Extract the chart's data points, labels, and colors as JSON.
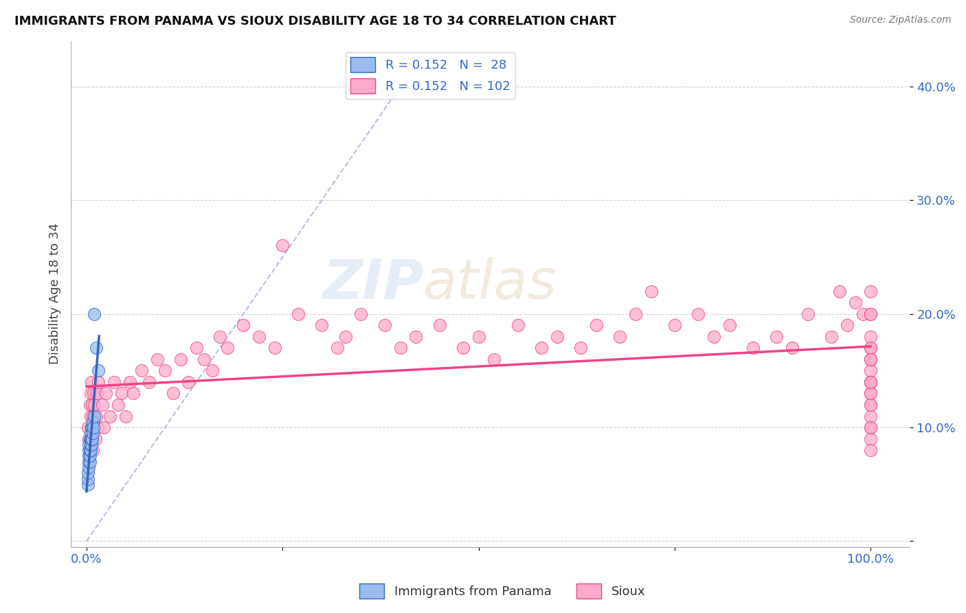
{
  "title": "IMMIGRANTS FROM PANAMA VS SIOUX DISABILITY AGE 18 TO 34 CORRELATION CHART",
  "source": "Source: ZipAtlas.com",
  "ylabel_label": "Disability Age 18 to 34",
  "x_ticks": [
    0.0,
    0.25,
    0.5,
    0.75,
    1.0
  ],
  "x_tick_labels": [
    "0.0%",
    "",
    "",
    "",
    "100.0%"
  ],
  "y_ticks": [
    0.0,
    0.1,
    0.2,
    0.3,
    0.4
  ],
  "y_tick_labels": [
    "",
    "10.0%",
    "20.0%",
    "30.0%",
    "40.0%"
  ],
  "xlim": [
    -0.02,
    1.05
  ],
  "ylim": [
    -0.005,
    0.44
  ],
  "legend_entry1": "R = 0.152   N =  28",
  "legend_entry2": "R = 0.152   N = 102",
  "legend_label1": "Immigrants from Panama",
  "legend_label2": "Sioux",
  "color_blue": "#99BBEE",
  "color_pink": "#FFAACC",
  "color_trendline_blue": "#3366BB",
  "color_trendline_pink": "#EE4488",
  "color_diagonal": "#AABBDD",
  "watermark_zip": "ZIP",
  "watermark_atlas": "atlas",
  "blue_x": [
    0.002,
    0.002,
    0.002,
    0.003,
    0.003,
    0.003,
    0.003,
    0.003,
    0.004,
    0.004,
    0.004,
    0.004,
    0.005,
    0.005,
    0.005,
    0.005,
    0.006,
    0.006,
    0.006,
    0.007,
    0.007,
    0.008,
    0.008,
    0.009,
    0.01,
    0.01,
    0.012,
    0.015
  ],
  "blue_y": [
    0.05,
    0.055,
    0.06,
    0.065,
    0.07,
    0.075,
    0.08,
    0.085,
    0.07,
    0.075,
    0.08,
    0.09,
    0.08,
    0.085,
    0.09,
    0.095,
    0.085,
    0.09,
    0.1,
    0.09,
    0.1,
    0.095,
    0.105,
    0.1,
    0.11,
    0.2,
    0.17,
    0.15
  ],
  "pink_x": [
    0.002,
    0.003,
    0.004,
    0.004,
    0.005,
    0.005,
    0.006,
    0.006,
    0.007,
    0.007,
    0.008,
    0.008,
    0.009,
    0.01,
    0.01,
    0.011,
    0.012,
    0.013,
    0.014,
    0.015,
    0.02,
    0.022,
    0.025,
    0.03,
    0.035,
    0.04,
    0.045,
    0.05,
    0.055,
    0.06,
    0.07,
    0.08,
    0.09,
    0.1,
    0.11,
    0.12,
    0.13,
    0.14,
    0.15,
    0.16,
    0.17,
    0.18,
    0.2,
    0.22,
    0.24,
    0.25,
    0.27,
    0.3,
    0.32,
    0.33,
    0.35,
    0.38,
    0.4,
    0.42,
    0.45,
    0.48,
    0.5,
    0.52,
    0.55,
    0.58,
    0.6,
    0.63,
    0.65,
    0.68,
    0.7,
    0.72,
    0.75,
    0.78,
    0.8,
    0.82,
    0.85,
    0.88,
    0.9,
    0.92,
    0.95,
    0.96,
    0.97,
    0.98,
    0.99,
    1.0,
    1.0,
    1.0,
    1.0,
    1.0,
    1.0,
    1.0,
    1.0,
    1.0,
    1.0,
    1.0,
    1.0,
    1.0,
    1.0,
    1.0,
    1.0,
    1.0,
    1.0,
    1.0,
    1.0,
    1.0,
    1.0,
    1.0
  ],
  "pink_y": [
    0.1,
    0.09,
    0.12,
    0.08,
    0.11,
    0.13,
    0.1,
    0.14,
    0.09,
    0.12,
    0.11,
    0.08,
    0.13,
    0.1,
    0.12,
    0.09,
    0.11,
    0.13,
    0.1,
    0.14,
    0.12,
    0.1,
    0.13,
    0.11,
    0.14,
    0.12,
    0.13,
    0.11,
    0.14,
    0.13,
    0.15,
    0.14,
    0.16,
    0.15,
    0.13,
    0.16,
    0.14,
    0.17,
    0.16,
    0.15,
    0.18,
    0.17,
    0.19,
    0.18,
    0.17,
    0.26,
    0.2,
    0.19,
    0.17,
    0.18,
    0.2,
    0.19,
    0.17,
    0.18,
    0.19,
    0.17,
    0.18,
    0.16,
    0.19,
    0.17,
    0.18,
    0.17,
    0.19,
    0.18,
    0.2,
    0.22,
    0.19,
    0.2,
    0.18,
    0.19,
    0.17,
    0.18,
    0.17,
    0.2,
    0.18,
    0.22,
    0.19,
    0.21,
    0.2,
    0.22,
    0.13,
    0.15,
    0.1,
    0.09,
    0.17,
    0.08,
    0.14,
    0.16,
    0.18,
    0.12,
    0.2,
    0.14,
    0.17,
    0.11,
    0.16,
    0.14,
    0.12,
    0.2,
    0.1,
    0.13,
    0.16,
    0.14
  ]
}
